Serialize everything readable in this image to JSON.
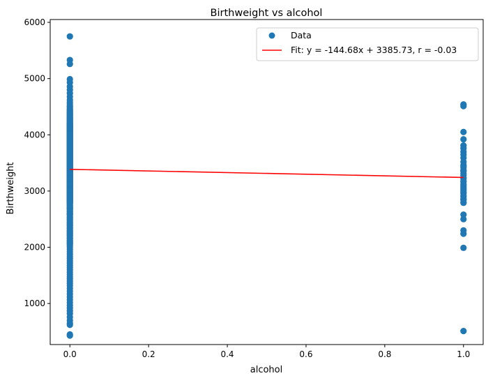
{
  "chart_data": {
    "type": "scatter",
    "title": "Birthweight vs alcohol",
    "xlabel": "alcohol",
    "ylabel": "Birthweight",
    "xlim": [
      -0.05,
      1.05
    ],
    "ylim": [
      270,
      6050
    ],
    "xticks": [
      0.0,
      0.2,
      0.4,
      0.6,
      0.8,
      1.0
    ],
    "xtick_labels": [
      "0.0",
      "0.2",
      "0.4",
      "0.6",
      "0.8",
      "1.0"
    ],
    "yticks": [
      1000,
      2000,
      3000,
      4000,
      5000,
      6000
    ],
    "ytick_labels": [
      "1000",
      "2000",
      "3000",
      "4000",
      "5000",
      "6000"
    ],
    "grid": false,
    "legend_position": "top-right",
    "colors": {
      "points": "#1f77b4",
      "fit": "#ff0000"
    },
    "series": [
      {
        "name": "Data",
        "type": "scatter",
        "x": [
          0,
          0,
          0,
          0,
          0,
          0,
          0,
          0,
          0,
          0,
          0,
          0,
          0,
          0,
          0,
          0,
          0,
          0,
          0,
          0,
          0,
          0,
          0,
          0,
          0,
          0,
          0,
          0,
          0,
          0,
          0,
          0,
          0,
          0,
          0,
          0,
          0,
          0,
          0,
          0,
          0,
          0,
          0,
          0,
          0,
          0,
          0,
          0,
          0,
          0,
          0,
          0,
          0,
          0,
          0,
          0,
          0,
          0,
          0,
          0,
          0,
          0,
          0,
          0,
          0,
          0,
          0,
          0,
          0,
          0,
          0,
          0,
          0,
          0,
          0,
          0,
          0,
          0,
          0,
          0,
          0,
          0,
          0,
          0,
          0,
          0,
          0,
          0,
          0,
          0,
          0,
          0,
          0,
          0,
          0,
          0,
          0,
          0,
          0,
          0,
          0,
          0,
          0,
          0,
          0,
          0,
          0,
          0,
          0,
          0,
          0,
          0,
          0,
          0,
          0,
          0,
          0,
          0,
          0,
          0,
          0,
          0,
          0,
          0,
          0,
          0,
          0,
          0,
          0,
          0,
          0,
          0,
          0,
          0,
          0,
          0,
          0,
          0,
          0,
          0,
          0,
          0,
          0,
          0,
          0,
          0,
          0,
          0,
          0,
          0,
          0,
          0,
          0,
          0,
          0,
          0,
          0,
          0,
          0,
          0,
          0,
          0,
          0,
          0,
          0,
          0,
          0,
          0,
          0,
          0,
          0,
          0,
          0,
          0,
          0,
          0,
          0,
          0,
          0,
          0,
          0,
          0,
          0,
          0,
          0,
          0,
          0,
          0,
          0,
          0,
          0,
          0,
          0,
          0,
          0,
          0,
          0,
          0,
          0,
          0,
          0,
          0,
          0,
          0,
          0,
          0,
          0,
          0,
          0,
          0,
          0,
          0,
          0,
          0,
          0,
          0,
          0,
          0,
          0,
          0,
          0,
          0,
          0,
          0,
          0,
          0,
          0,
          0,
          0,
          0,
          0,
          0,
          0,
          0,
          0,
          0,
          0,
          0,
          0,
          0,
          0,
          0,
          0,
          0,
          0,
          0,
          0,
          0,
          0,
          0,
          0,
          0,
          0,
          0,
          0,
          0,
          0,
          0,
          0,
          0,
          0,
          0,
          0,
          0,
          0,
          0,
          0,
          0,
          0,
          0,
          0,
          0,
          0,
          0,
          0,
          0,
          0,
          0,
          0,
          0,
          0,
          0,
          0,
          0,
          0,
          0,
          0,
          0,
          0,
          0,
          0,
          0,
          0,
          0,
          0,
          0,
          0,
          0,
          0,
          0,
          0,
          0,
          0,
          0,
          0,
          0,
          0,
          0,
          0,
          0,
          0,
          0,
          0,
          0,
          0,
          0,
          0,
          0,
          0,
          0,
          0,
          0,
          0,
          0,
          0,
          0,
          0,
          0,
          0,
          0,
          0,
          0,
          0,
          0,
          0,
          0,
          0,
          0,
          0,
          0,
          1,
          1,
          1,
          1,
          1,
          1,
          1,
          1,
          1,
          1,
          1,
          1,
          1,
          1,
          1,
          1,
          1,
          1,
          1,
          1,
          1,
          1,
          1,
          1,
          1,
          1,
          1,
          1,
          1,
          1,
          1,
          1,
          1,
          1,
          1,
          1,
          1,
          1,
          1,
          1
        ],
        "y": [
          5750,
          5330,
          5260,
          4990,
          4930,
          4860,
          4800,
          4740,
          4680,
          4620,
          4580,
          4550,
          4520,
          4490,
          4460,
          4430,
          4400,
          4370,
          4340,
          4310,
          4280,
          4250,
          4220,
          4190,
          4160,
          4130,
          4100,
          4070,
          4040,
          4010,
          3980,
          3950,
          3920,
          3890,
          3860,
          3830,
          3800,
          3770,
          3740,
          3710,
          3680,
          3650,
          3620,
          3590,
          3560,
          3530,
          3500,
          3470,
          3440,
          3410,
          3380,
          3350,
          3320,
          3290,
          3260,
          3230,
          3200,
          3170,
          3140,
          3110,
          3080,
          3050,
          3020,
          2990,
          2960,
          2930,
          2900,
          2870,
          2840,
          2810,
          2780,
          2750,
          2720,
          2690,
          2660,
          2630,
          2600,
          2570,
          2540,
          2510,
          2480,
          2450,
          2420,
          2390,
          2360,
          2330,
          2300,
          2270,
          2240,
          2210,
          2180,
          2150,
          2120,
          2090,
          2060,
          2030,
          2000,
          1960,
          1920,
          1880,
          1840,
          1800,
          1760,
          1720,
          1680,
          1640,
          1600,
          1560,
          1520,
          1480,
          1440,
          1400,
          1360,
          1320,
          1270,
          1220,
          1170,
          1120,
          1070,
          1020,
          970,
          920,
          870,
          820,
          760,
          700,
          650,
          620,
          450,
          430,
          4500,
          4400,
          4300,
          4200,
          4100,
          4000,
          3900,
          3800,
          3700,
          3600,
          3500,
          3400,
          3300,
          3200,
          3100,
          3000,
          2900,
          2800,
          2700,
          2600,
          3450,
          3350,
          3250,
          3150,
          3050,
          2950,
          2850,
          2750,
          3550,
          3650,
          3750,
          3850,
          3950,
          4050,
          4150,
          4250,
          4350,
          4450,
          3420,
          3320,
          3220,
          3120,
          3020,
          2920,
          2820,
          2720,
          3520,
          3620,
          3720,
          3820,
          3920,
          4020,
          4120,
          4220,
          4320,
          4420,
          3380,
          3280,
          3180,
          3080,
          2980,
          2880,
          2780,
          2680,
          3480,
          3580,
          3680,
          3780,
          3880,
          3980,
          4080,
          4180,
          4280,
          4380,
          3360,
          3260,
          3160,
          3060,
          2960,
          2860,
          3460,
          3560,
          3660,
          3760,
          3860,
          3960,
          4060,
          4160,
          4260,
          4360,
          3340,
          3240,
          3140,
          3040,
          2940,
          2840,
          2740,
          2640,
          2580,
          2530,
          2490,
          2440,
          2390,
          2340,
          2290,
          2250,
          2210,
          2160,
          2110,
          2070,
          3430,
          3330,
          3230,
          3130,
          3030,
          2930,
          2830,
          3530,
          3630,
          3730,
          3830,
          3930,
          4030,
          4130,
          4230,
          3410,
          3310,
          3210,
          3110,
          3010,
          2910,
          2810,
          3510,
          3610,
          3710,
          3810,
          3910,
          4010,
          4110,
          4210,
          3390,
          3290,
          3190,
          3090,
          2990,
          2890,
          2790,
          3490,
          3590,
          3690,
          3790,
          3890,
          3990,
          4090,
          4190,
          3370,
          3270,
          3170,
          3070,
          2970,
          2870,
          3470,
          3570,
          3670,
          3770,
          3870,
          3970,
          4070,
          4170,
          3350,
          3250,
          3150,
          3050,
          2950,
          2850,
          3450,
          3550,
          3650,
          3750,
          3850,
          3950,
          4050,
          4150,
          3330,
          3230,
          3130,
          3030,
          2930,
          2830,
          3430,
          3530,
          3630,
          3730,
          3830,
          3930,
          4030,
          4130,
          3310,
          3210,
          3110,
          3010,
          2910,
          2810,
          3410,
          3510,
          3610,
          3710,
          3810,
          3910,
          4010,
          4540,
          4510,
          4050,
          3920,
          3810,
          3760,
          3700,
          3590,
          3520,
          3460,
          3420,
          3370,
          3310,
          3240,
          3180,
          3120,
          3070,
          3010,
          2960,
          2900,
          2840,
          2790,
          2580,
          2500,
          2300,
          2240,
          1990,
          510,
          3350,
          3280,
          3220,
          3160,
          3100,
          3040,
          2980,
          2920,
          2860,
          2800,
          3650,
          3440
        ]
      },
      {
        "name": "Fit: y = -144.68x + 3385.73, r = -0.03",
        "type": "line",
        "slope": -144.68,
        "intercept": 3385.73,
        "r": -0.03,
        "x": [
          0,
          1
        ]
      }
    ]
  }
}
